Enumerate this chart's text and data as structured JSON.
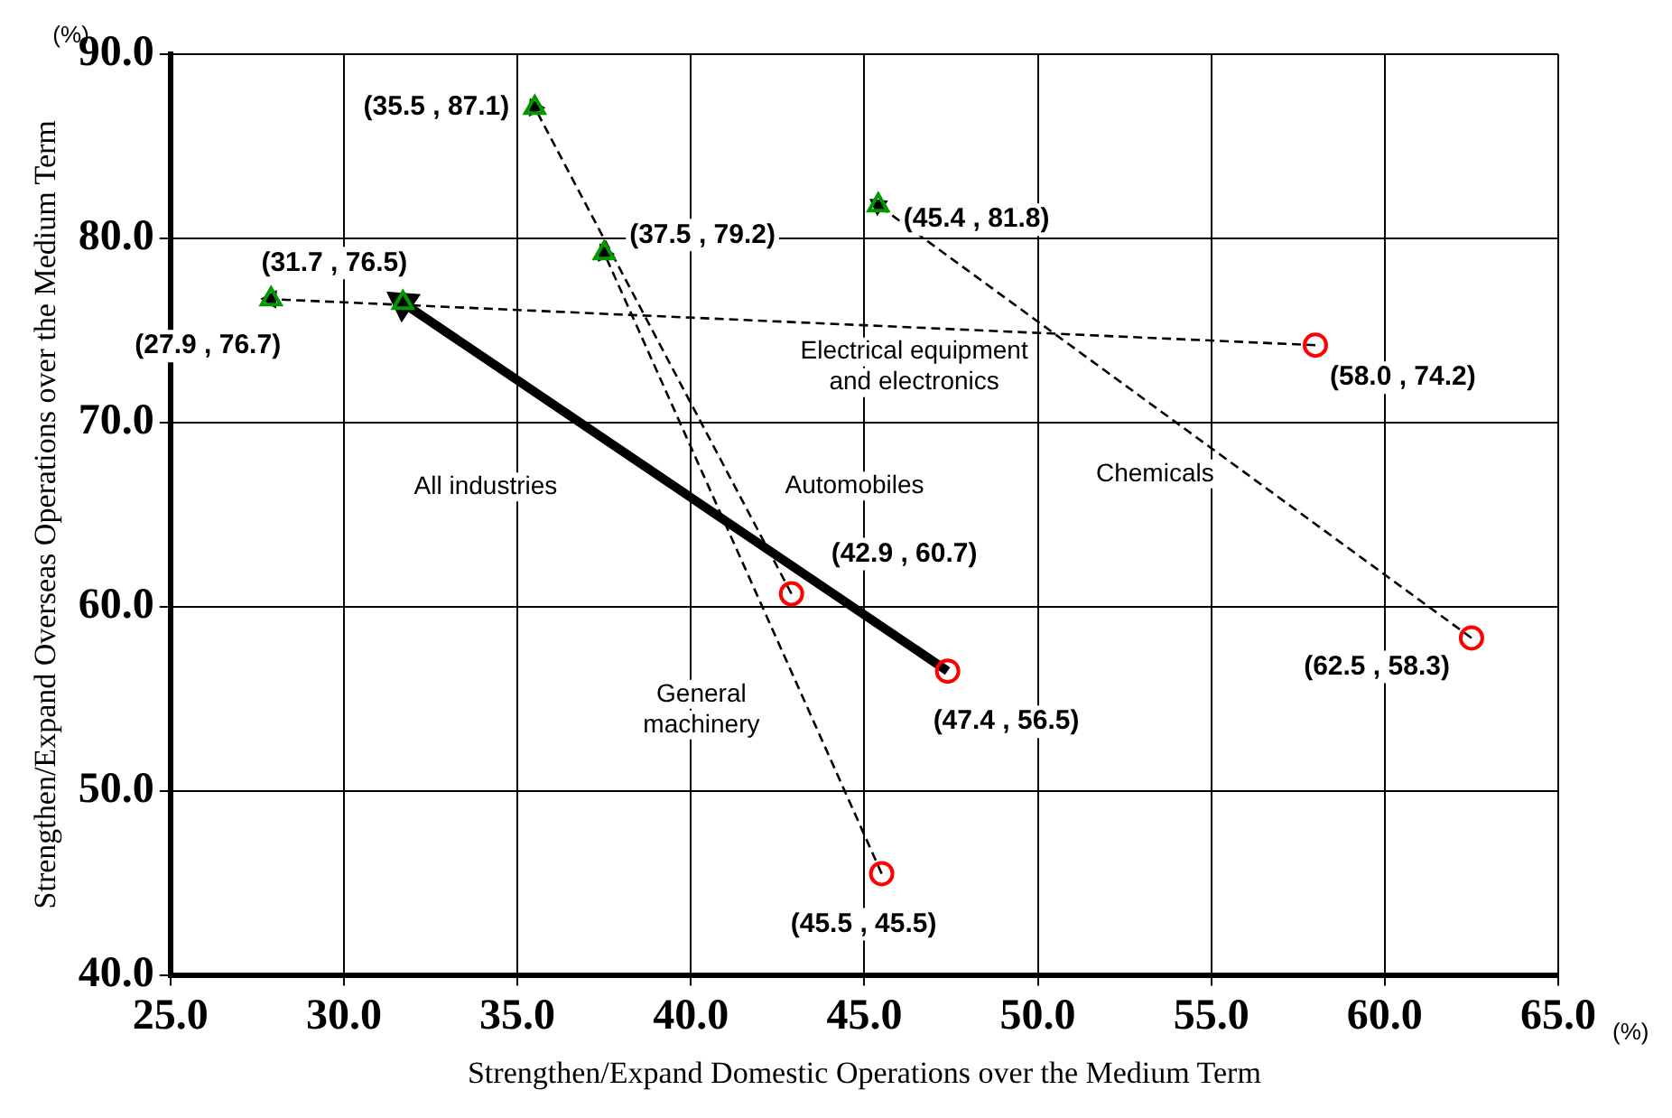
{
  "chart_data": {
    "type": "scatter",
    "xlabel": "Strengthen/Expand Domestic Operations over the Medium Term",
    "ylabel": "Strengthen/Expand Overseas Operations over the Medium Term",
    "xlim": [
      25,
      65
    ],
    "ylim": [
      40,
      90
    ],
    "xticks": [
      {
        "value": 25,
        "label": "25.0"
      },
      {
        "value": 30,
        "label": "30.0"
      },
      {
        "value": 35,
        "label": "35.0"
      },
      {
        "value": 40,
        "label": "40.0"
      },
      {
        "value": 45,
        "label": "45.0"
      },
      {
        "value": 50,
        "label": "50.0"
      },
      {
        "value": 55,
        "label": "55.0"
      },
      {
        "value": 60,
        "label": "60.0"
      },
      {
        "value": 65,
        "label": "65.0"
      }
    ],
    "yticks": [
      {
        "value": 40,
        "label": "40.0"
      },
      {
        "value": 50,
        "label": "50.0"
      },
      {
        "value": 60,
        "label": "60.0"
      },
      {
        "value": 70,
        "label": "70.0"
      },
      {
        "value": 80,
        "label": "80.0"
      },
      {
        "value": 90,
        "label": "90.0"
      }
    ],
    "grid": true,
    "legend": false,
    "series": [
      {
        "type": "line",
        "name": "Automobiles",
        "color": "#000000",
        "x": [
          42.9,
          35.5
        ],
        "values": [
          60.7,
          87.1
        ],
        "line_style": "dashed"
      },
      {
        "type": "line",
        "name": "General\nmachinery",
        "color": "#000000",
        "x": [
          45.5,
          37.5
        ],
        "values": [
          45.5,
          79.2
        ],
        "line_style": "dashed"
      },
      {
        "type": "line",
        "name": "Electrical equipment\nand electronics",
        "color": "#000000",
        "x": [
          58.0,
          27.9
        ],
        "values": [
          74.2,
          76.7
        ],
        "line_style": "dashed"
      },
      {
        "type": "line",
        "name": "Chemicals",
        "color": "#000000",
        "x": [
          62.5,
          45.4
        ],
        "values": [
          58.3,
          81.8
        ],
        "line_style": "dashed"
      },
      {
        "type": "line",
        "name": "All industries",
        "color": "#000000",
        "x": [
          47.4,
          31.7
        ],
        "values": [
          56.5,
          76.5
        ],
        "line_style": "solid"
      },
      {
        "type": "scatter",
        "color": "#ff0000",
        "marker": "circle",
        "x": [
          42.9,
          45.5,
          47.4,
          58.0,
          62.5
        ],
        "values": [
          60.7,
          45.5,
          56.5,
          74.2,
          58.3
        ],
        "value_labels": [
          "(42.9 , 60.7)",
          "(45.5 , 45.5)",
          "(47.4 , 56.5)",
          "(58.0 , 74.2)",
          "(62.5 , 58.3)"
        ]
      },
      {
        "type": "scatter",
        "color": "#009900",
        "marker": "triangle",
        "x": [
          35.5,
          37.5,
          27.9,
          45.4,
          31.7
        ],
        "values": [
          87.1,
          79.2,
          76.7,
          81.8,
          76.5
        ],
        "value_labels": [
          "(35.5 , 87.1)",
          "(37.5 , 79.2)",
          "(27.9 , 76.7)",
          "(45.4 , 81.8)",
          "(31.7 , 76.5)"
        ]
      }
    ],
    "annotations": [
      "(%)",
      "(%)"
    ]
  }
}
